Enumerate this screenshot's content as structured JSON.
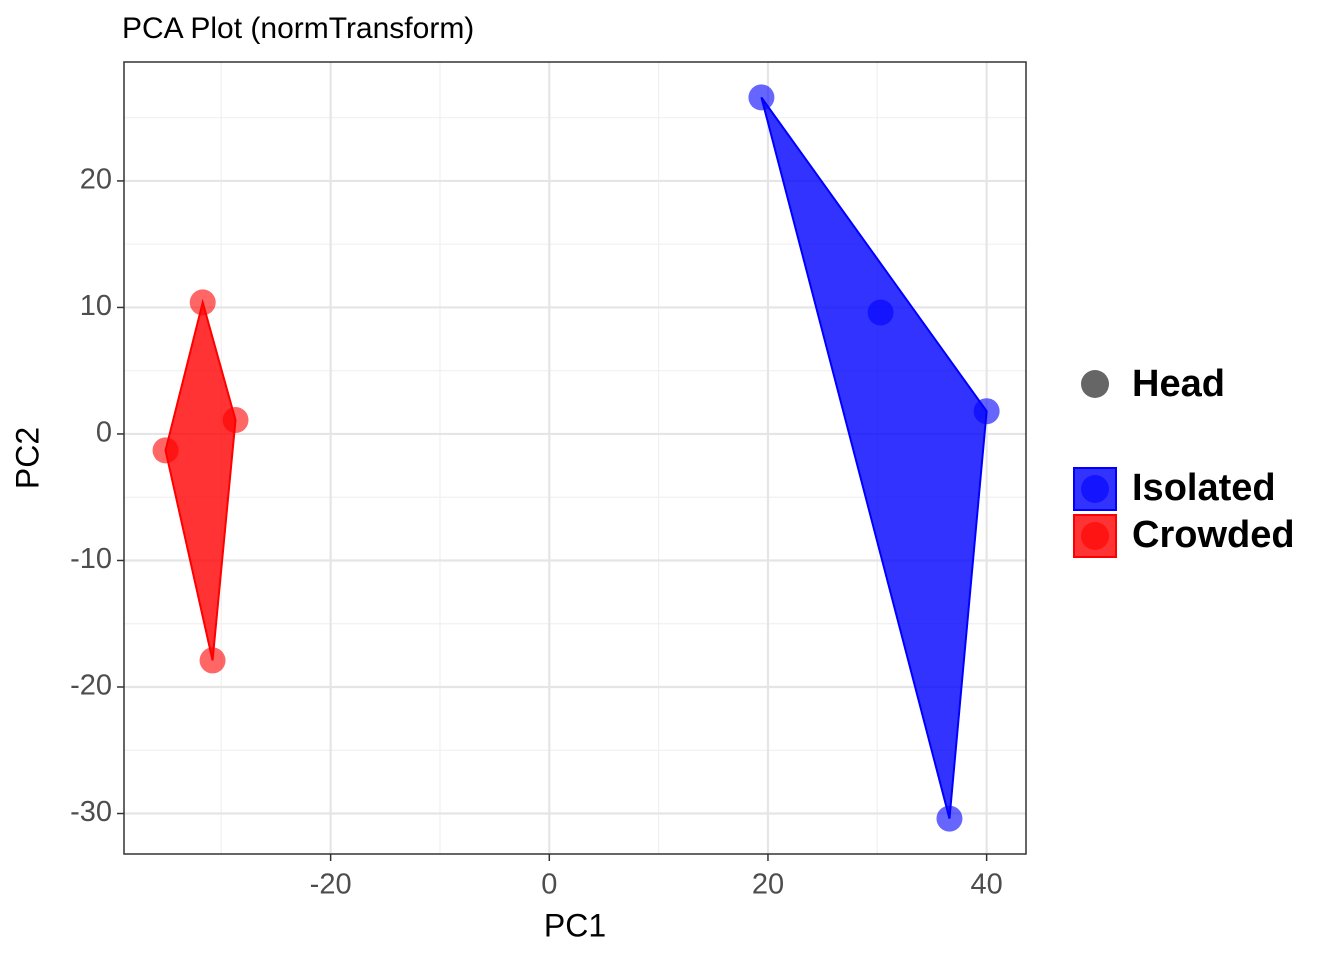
{
  "chart_data": {
    "type": "scatter",
    "title": "PCA Plot (normTransform)",
    "x_label": "PC1",
    "y_label": "PC2",
    "xlim": [
      -38.9,
      43.6
    ],
    "ylim": [
      -33.2,
      29.4
    ],
    "xticks": [
      -20,
      0,
      20,
      40
    ],
    "yticks": [
      -30,
      -20,
      -10,
      0,
      10,
      20
    ],
    "grid": true,
    "legend": "right",
    "shape_legend": {
      "name": "Head",
      "color": "#666666"
    },
    "series": [
      {
        "name": "Isolated",
        "color": "#0000ff",
        "x": [
          19.4,
          30.3,
          40.0,
          36.6
        ],
        "values": [
          26.6,
          9.6,
          1.8,
          -30.4
        ]
      },
      {
        "name": "Crowded",
        "color": "#ff0000",
        "x": [
          -31.7,
          -28.7,
          -35.1,
          -30.8
        ],
        "values": [
          10.4,
          1.1,
          -1.3,
          -17.9
        ]
      }
    ]
  }
}
